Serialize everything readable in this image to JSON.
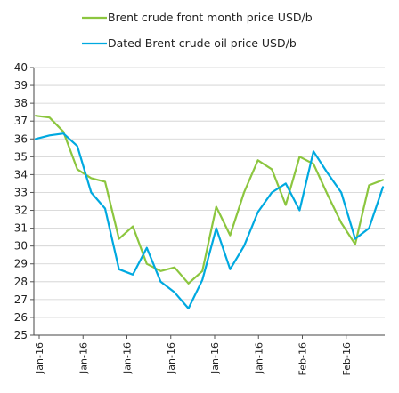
{
  "chart_data": {
    "type": "line",
    "title": "",
    "xlabel": "",
    "ylabel": "",
    "ylim": [
      25,
      40
    ],
    "yticks": [
      25,
      26,
      27,
      28,
      29,
      30,
      31,
      32,
      33,
      34,
      35,
      36,
      37,
      38,
      39,
      40
    ],
    "grid": "horizontal",
    "legend_position": "top",
    "x_tick_labels": [
      "Jan-16",
      "Jan-16",
      "Jan-16",
      "Jan-16",
      "Jan-16",
      "Jan-16",
      "Feb-16",
      "Feb-16"
    ],
    "series": [
      {
        "name": "Brent crude front month price USD/b",
        "color": "#8cc63f",
        "values": [
          37.3,
          37.2,
          36.4,
          34.3,
          33.8,
          33.6,
          30.4,
          31.1,
          29.0,
          28.6,
          28.8,
          27.9,
          28.6,
          32.2,
          30.6,
          33.0,
          34.8,
          34.3,
          32.3,
          35.0,
          34.6,
          32.9,
          31.3,
          30.1,
          33.4,
          33.7
        ]
      },
      {
        "name": "Dated Brent crude oil price USD/b",
        "color": "#00a9e0",
        "values": [
          36.0,
          36.2,
          36.3,
          35.6,
          33.0,
          32.1,
          28.7,
          28.4,
          29.9,
          28.0,
          27.4,
          26.5,
          28.1,
          31.0,
          28.7,
          30.0,
          31.9,
          33.0,
          33.5,
          32.0,
          35.3,
          34.1,
          33.0,
          30.4,
          31.0,
          33.3
        ]
      }
    ]
  }
}
